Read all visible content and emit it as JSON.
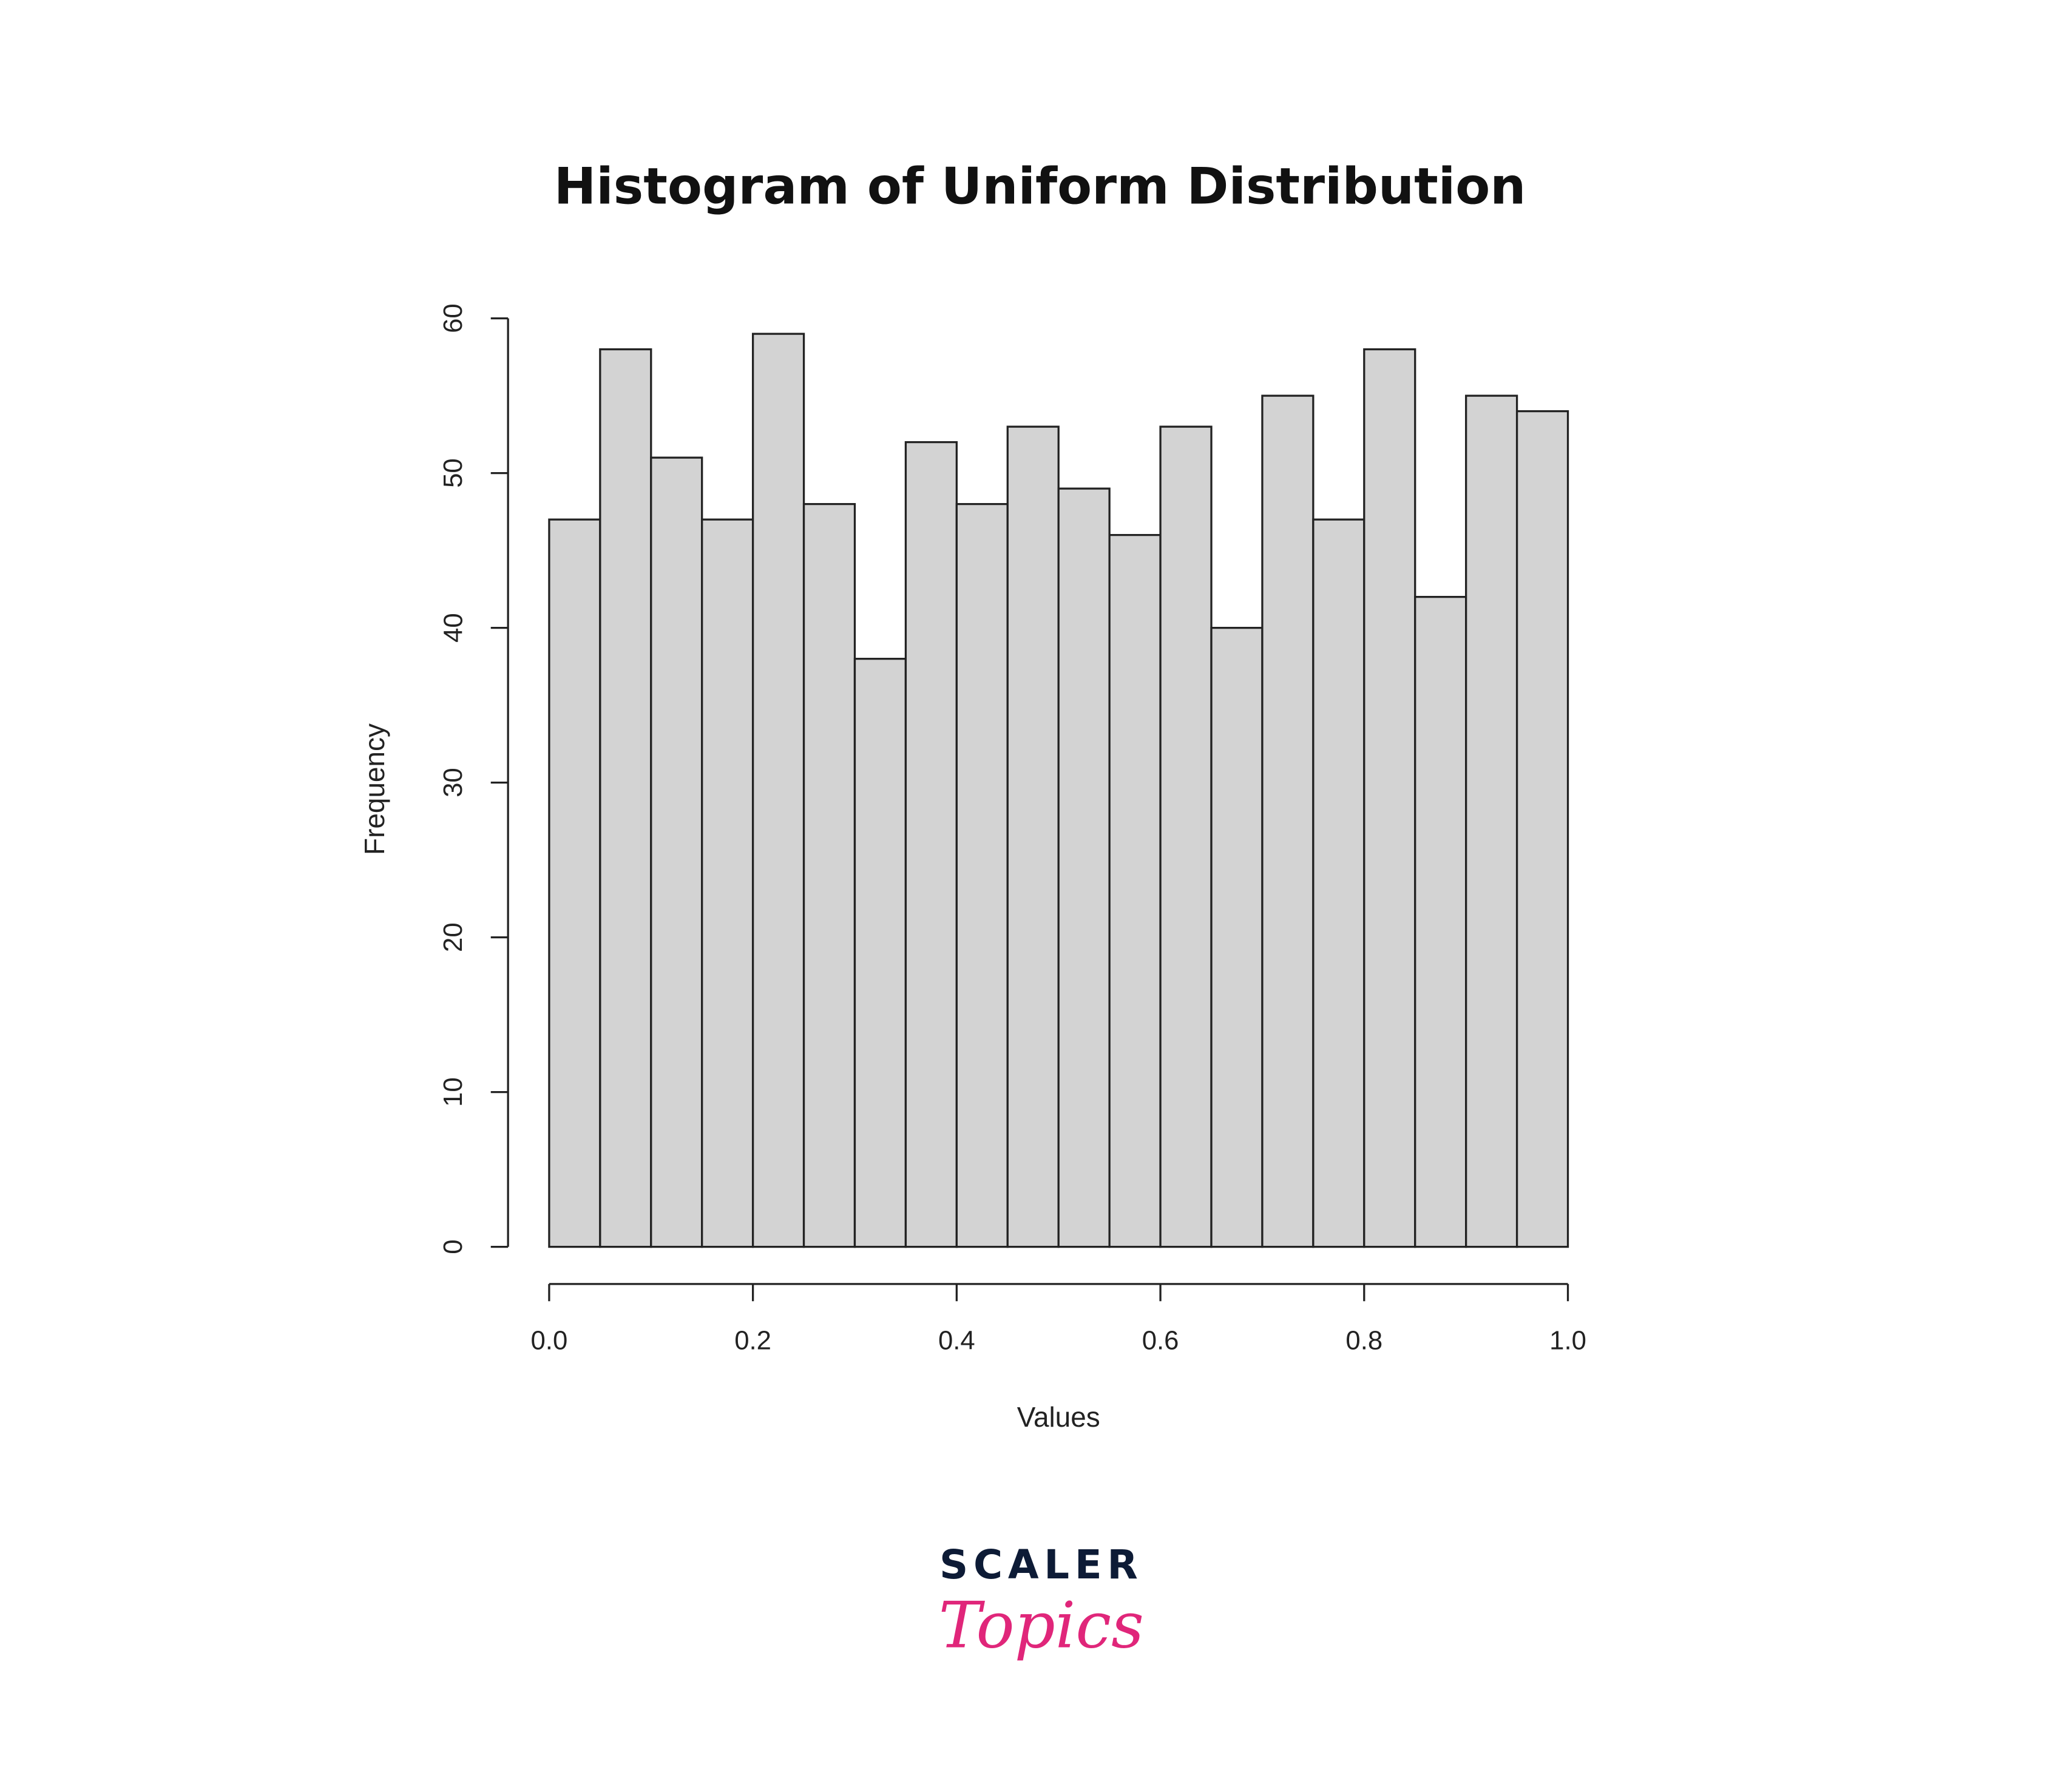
{
  "chart_data": {
    "type": "histogram",
    "title": "Histogram of Uniform Distribution",
    "x_label": "Values",
    "y_label": "Frequency",
    "bins": [
      0,
      0.05,
      0.1,
      0.15,
      0.2,
      0.25,
      0.3,
      0.35,
      0.4,
      0.45,
      0.5,
      0.55,
      0.6,
      0.65,
      0.7,
      0.75,
      0.8,
      0.85,
      0.9,
      0.95,
      1
    ],
    "values": [
      47,
      58,
      51,
      47,
      59,
      48,
      38,
      52,
      48,
      53,
      49,
      46,
      53,
      40,
      55,
      47,
      58,
      42,
      55,
      54
    ],
    "color": "#d3d3d3",
    "xlim": [
      0,
      1
    ],
    "xticks": [
      {
        "value": 0,
        "label": "0.0"
      },
      0.2,
      0.4,
      0.6,
      0.8,
      {
        "value": 1,
        "label": "1.0"
      }
    ],
    "ylim": [
      0,
      60
    ],
    "yticks": [
      0,
      10,
      20,
      30,
      40,
      50,
      60
    ],
    "grid": false
  },
  "logo": {
    "line1": "SCALER",
    "line2": "Topics"
  }
}
